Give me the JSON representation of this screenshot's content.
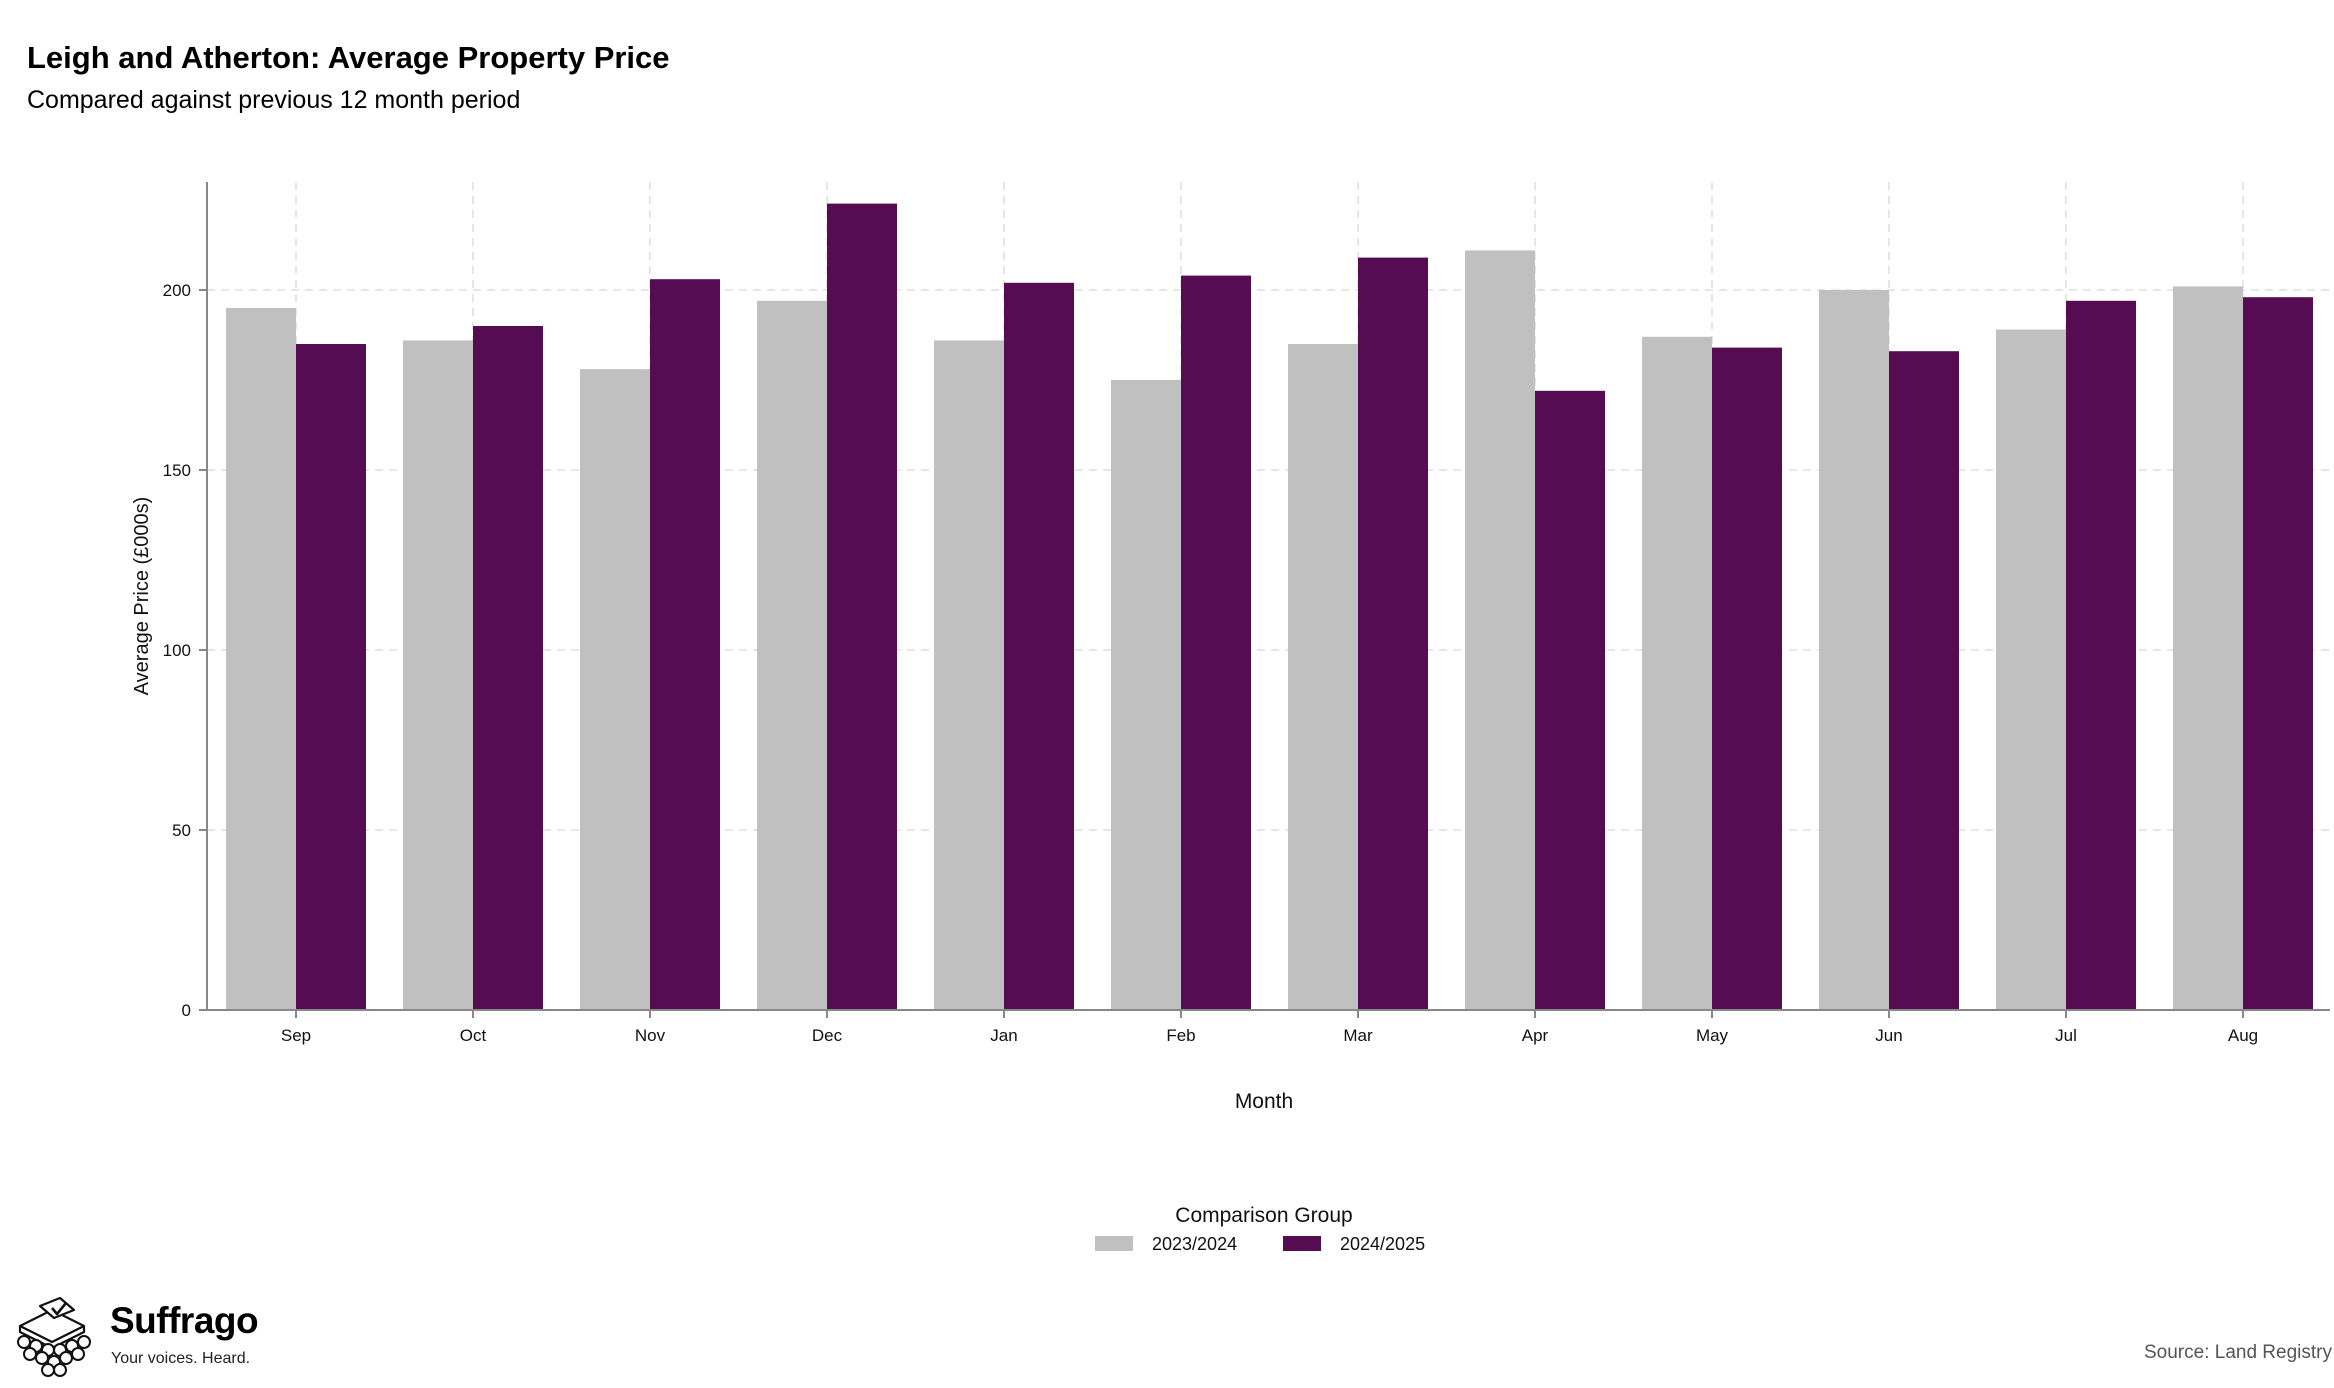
{
  "header": {
    "title": "Leigh and Atherton: Average Property Price",
    "subtitle": "Compared against previous 12 month period"
  },
  "footer": {
    "source": "Source: Land Registry",
    "brand_name": "Suffrago",
    "brand_tagline": "Your voices. Heard."
  },
  "colors": {
    "series_2023_2024": "#c0c0c0",
    "series_2024_2025": "#560c52",
    "grid": "#dddddd",
    "axis": "#888888"
  },
  "chart_data": {
    "type": "bar",
    "title": "Leigh and Atherton: Average Property Price",
    "subtitle": "Compared against previous 12 month period",
    "xlabel": "Month",
    "ylabel": "Average Price (£000s)",
    "ylim": [
      0,
      230
    ],
    "yticks": [
      0,
      50,
      100,
      150,
      200
    ],
    "grid": true,
    "legend_title": "Comparison Group",
    "legend_position": "bottom-center",
    "categories": [
      "Sep",
      "Oct",
      "Nov",
      "Dec",
      "Jan",
      "Feb",
      "Mar",
      "Apr",
      "May",
      "Jun",
      "Jul",
      "Aug"
    ],
    "series": [
      {
        "name": "2023/2024",
        "color": "#c0c0c0",
        "values": [
          195,
          186,
          178,
          197,
          186,
          175,
          185,
          211,
          187,
          200,
          189,
          201
        ]
      },
      {
        "name": "2024/2025",
        "color": "#560c52",
        "values": [
          185,
          190,
          203,
          224,
          202,
          204,
          209,
          172,
          184,
          183,
          197,
          198
        ]
      }
    ]
  }
}
